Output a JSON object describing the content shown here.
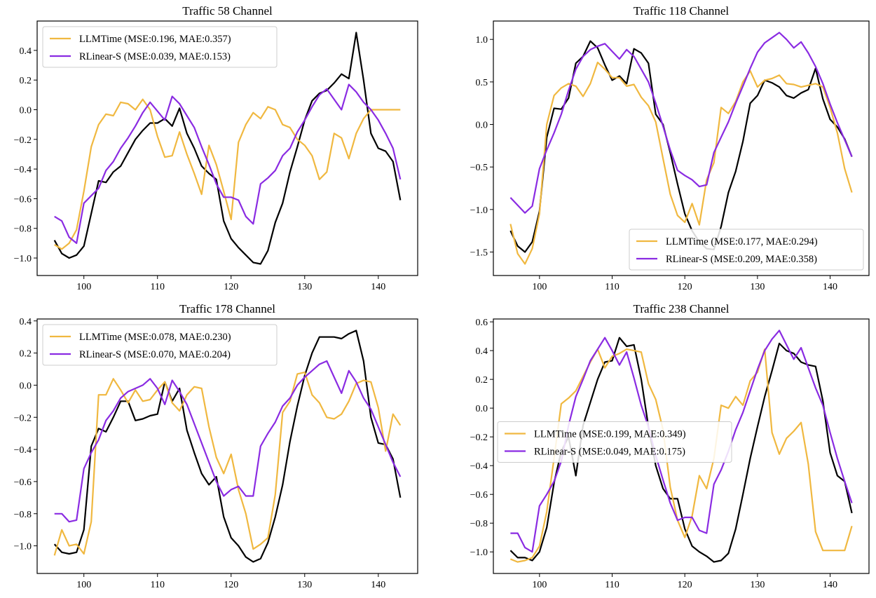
{
  "colors": {
    "truth": "#000000",
    "llmtime": "#F0B840",
    "rlinear": "#8A2BE2"
  },
  "chart_data": [
    {
      "type": "line",
      "title": "Traffic 58 Channel",
      "x_start": 96,
      "xlim": [
        93.65,
        145.35
      ],
      "ylim": [
        -1.118,
        0.598
      ],
      "xticks": [
        100,
        110,
        120,
        130,
        140
      ],
      "xticklabels": [
        "100",
        "110",
        "120",
        "130",
        "140"
      ],
      "yticks": [
        -1.0,
        -0.8,
        -0.6,
        -0.4,
        -0.2,
        0.0,
        0.2,
        0.4
      ],
      "yticklabels": [
        "−1.0",
        "−0.8",
        "−0.6",
        "−0.4",
        "−0.2",
        "0.0",
        "0.2",
        "0.4"
      ],
      "grid": false,
      "legend": "upper-left",
      "series": [
        {
          "color_key": "truth",
          "values": [
            -0.88,
            -0.97,
            -1.0,
            -0.98,
            -0.92,
            -0.7,
            -0.48,
            -0.49,
            -0.42,
            -0.38,
            -0.29,
            -0.2,
            -0.14,
            -0.09,
            -0.09,
            -0.06,
            -0.11,
            0.01,
            -0.16,
            -0.26,
            -0.38,
            -0.43,
            -0.47,
            -0.75,
            -0.87,
            -0.93,
            -0.98,
            -1.03,
            -1.04,
            -0.95,
            -0.76,
            -0.63,
            -0.42,
            -0.25,
            -0.07,
            0.06,
            0.11,
            0.13,
            0.18,
            0.24,
            0.21,
            0.52,
            0.2,
            -0.16,
            -0.26,
            -0.28,
            -0.35,
            -0.61
          ]
        },
        {
          "name": "LLMTime (MSE:0.196, MAE:0.357)",
          "color_key": "llmtime",
          "values": [
            -0.91,
            -0.94,
            -0.9,
            -0.81,
            -0.55,
            -0.25,
            -0.1,
            -0.03,
            -0.04,
            0.05,
            0.04,
            0.0,
            0.07,
            0.0,
            -0.18,
            -0.32,
            -0.31,
            -0.15,
            -0.3,
            -0.43,
            -0.57,
            -0.24,
            -0.37,
            -0.55,
            -0.74,
            -0.22,
            -0.1,
            -0.02,
            -0.06,
            0.02,
            0.0,
            -0.1,
            -0.12,
            -0.2,
            -0.24,
            -0.31,
            -0.47,
            -0.42,
            -0.16,
            -0.19,
            -0.33,
            -0.16,
            -0.06,
            0.0,
            0.0,
            0.0,
            0.0,
            0.0
          ]
        },
        {
          "name": "RLinear-S (MSE:0.039, MAE:0.153)",
          "color_key": "rlinear",
          "values": [
            -0.72,
            -0.75,
            -0.86,
            -0.9,
            -0.63,
            -0.58,
            -0.53,
            -0.41,
            -0.35,
            -0.26,
            -0.19,
            -0.11,
            -0.02,
            0.05,
            -0.01,
            -0.07,
            0.09,
            0.04,
            -0.04,
            -0.12,
            -0.25,
            -0.37,
            -0.5,
            -0.59,
            -0.59,
            -0.61,
            -0.72,
            -0.77,
            -0.5,
            -0.46,
            -0.41,
            -0.31,
            -0.26,
            -0.15,
            -0.07,
            0.02,
            0.1,
            0.14,
            0.07,
            0.0,
            0.17,
            0.12,
            0.05,
            0.0,
            -0.07,
            -0.16,
            -0.26,
            -0.47
          ]
        }
      ]
    },
    {
      "type": "line",
      "title": "Traffic 118 Channel",
      "x_start": 96,
      "xlim": [
        93.65,
        145.35
      ],
      "ylim": [
        -1.776,
        1.216
      ],
      "xticks": [
        100,
        110,
        120,
        130,
        140
      ],
      "xticklabels": [
        "100",
        "110",
        "120",
        "130",
        "140"
      ],
      "yticks": [
        -1.5,
        -1.0,
        -0.5,
        0.0,
        0.5,
        1.0
      ],
      "yticklabels": [
        "−1.5",
        "−1.0",
        "−0.5",
        "0.0",
        "0.5",
        "1.0"
      ],
      "grid": false,
      "legend": "lower-right",
      "series": [
        {
          "color_key": "truth",
          "values": [
            -1.25,
            -1.43,
            -1.5,
            -1.38,
            -1.02,
            -0.15,
            0.19,
            0.18,
            0.31,
            0.72,
            0.8,
            0.98,
            0.9,
            0.7,
            0.52,
            0.57,
            0.48,
            0.89,
            0.84,
            0.72,
            0.12,
            0.0,
            -0.33,
            -0.7,
            -1.05,
            -1.25,
            -1.38,
            -1.46,
            -1.47,
            -1.2,
            -0.8,
            -0.55,
            -0.2,
            0.25,
            0.34,
            0.52,
            0.49,
            0.44,
            0.34,
            0.31,
            0.37,
            0.41,
            0.66,
            0.3,
            0.06,
            -0.03,
            -0.17,
            -0.38
          ]
        },
        {
          "name": "LLMTime (MSE:0.177, MAE:0.294)",
          "color_key": "llmtime",
          "values": [
            -1.17,
            -1.52,
            -1.64,
            -1.46,
            -1.05,
            0.0,
            0.34,
            0.43,
            0.48,
            0.45,
            0.33,
            0.48,
            0.73,
            0.65,
            0.55,
            0.55,
            0.45,
            0.47,
            0.32,
            0.22,
            0.03,
            -0.4,
            -0.82,
            -1.07,
            -1.15,
            -0.93,
            -1.18,
            -0.65,
            -0.45,
            0.2,
            0.13,
            0.27,
            0.5,
            0.63,
            0.44,
            0.52,
            0.54,
            0.58,
            0.48,
            0.47,
            0.44,
            0.46,
            0.48,
            0.44,
            0.2,
            -0.1,
            -0.52,
            -0.8
          ]
        },
        {
          "name": "RLinear-S (MSE:0.209, MAE:0.358)",
          "color_key": "rlinear",
          "values": [
            -0.86,
            -0.95,
            -1.04,
            -0.96,
            -0.52,
            -0.3,
            -0.1,
            0.12,
            0.4,
            0.65,
            0.8,
            0.88,
            0.92,
            0.95,
            0.86,
            0.77,
            0.88,
            0.8,
            0.65,
            0.5,
            0.25,
            -0.02,
            -0.3,
            -0.54,
            -0.6,
            -0.65,
            -0.73,
            -0.71,
            -0.33,
            -0.15,
            0.03,
            0.25,
            0.45,
            0.66,
            0.85,
            0.96,
            1.02,
            1.08,
            1.0,
            0.9,
            0.97,
            0.84,
            0.68,
            0.48,
            0.24,
            0.02,
            -0.18,
            -0.38
          ]
        }
      ]
    },
    {
      "type": "line",
      "title": "Traffic 178 Channel",
      "x_start": 96,
      "xlim": [
        93.65,
        145.35
      ],
      "ylim": [
        -1.172,
        0.412
      ],
      "xticks": [
        100,
        110,
        120,
        130,
        140
      ],
      "xticklabels": [
        "100",
        "110",
        "120",
        "130",
        "140"
      ],
      "yticks": [
        -1.0,
        -0.8,
        -0.6,
        -0.4,
        -0.2,
        0.0,
        0.2,
        0.4
      ],
      "yticklabels": [
        "−1.0",
        "−0.8",
        "−0.6",
        "−0.4",
        "−0.2",
        "0.0",
        "0.2",
        "0.4"
      ],
      "grid": false,
      "legend": "upper-left",
      "series": [
        {
          "color_key": "truth",
          "values": [
            -0.99,
            -1.04,
            -1.05,
            -1.04,
            -0.9,
            -0.38,
            -0.27,
            -0.29,
            -0.2,
            -0.1,
            -0.1,
            -0.22,
            -0.21,
            -0.19,
            -0.18,
            0.02,
            -0.1,
            -0.02,
            -0.28,
            -0.42,
            -0.55,
            -0.62,
            -0.57,
            -0.82,
            -0.95,
            -1.0,
            -1.07,
            -1.1,
            -1.08,
            -0.98,
            -0.82,
            -0.62,
            -0.35,
            -0.13,
            0.06,
            0.2,
            0.3,
            0.3,
            0.3,
            0.29,
            0.32,
            0.34,
            0.15,
            -0.2,
            -0.36,
            -0.37,
            -0.46,
            -0.7
          ]
        },
        {
          "name": "LLMTime (MSE:0.078, MAE:0.230)",
          "color_key": "llmtime",
          "values": [
            -1.06,
            -0.9,
            -1.0,
            -0.99,
            -1.05,
            -0.85,
            -0.06,
            -0.06,
            0.04,
            -0.03,
            -0.11,
            -0.03,
            -0.1,
            -0.09,
            -0.03,
            0.02,
            -0.11,
            -0.16,
            -0.06,
            -0.01,
            -0.02,
            -0.26,
            -0.45,
            -0.55,
            -0.43,
            -0.65,
            -0.8,
            -1.02,
            -0.99,
            -0.95,
            -0.68,
            -0.17,
            -0.1,
            0.07,
            0.08,
            -0.06,
            -0.11,
            -0.2,
            -0.21,
            -0.18,
            -0.1,
            0.01,
            0.03,
            0.02,
            -0.14,
            -0.41,
            -0.18,
            -0.25
          ]
        },
        {
          "name": "RLinear-S (MSE:0.070, MAE:0.204)",
          "color_key": "rlinear",
          "values": [
            -0.8,
            -0.8,
            -0.85,
            -0.84,
            -0.52,
            -0.42,
            -0.34,
            -0.22,
            -0.16,
            -0.08,
            -0.04,
            -0.02,
            0.0,
            0.04,
            -0.02,
            -0.12,
            0.03,
            -0.04,
            -0.12,
            -0.24,
            -0.36,
            -0.48,
            -0.6,
            -0.69,
            -0.65,
            -0.63,
            -0.69,
            -0.69,
            -0.38,
            -0.3,
            -0.23,
            -0.13,
            -0.08,
            0.0,
            0.05,
            0.09,
            0.13,
            0.15,
            0.05,
            -0.05,
            0.09,
            0.02,
            -0.08,
            -0.15,
            -0.26,
            -0.37,
            -0.48,
            -0.57
          ]
        }
      ]
    },
    {
      "type": "line",
      "title": "Traffic 238 Channel",
      "x_start": 96,
      "xlim": [
        93.65,
        145.35
      ],
      "ylim": [
        -1.15,
        0.62
      ],
      "xticks": [
        100,
        110,
        120,
        130,
        140
      ],
      "xticklabels": [
        "100",
        "110",
        "120",
        "130",
        "140"
      ],
      "yticks": [
        -1.0,
        -0.8,
        -0.6,
        -0.4,
        -0.2,
        0.0,
        0.2,
        0.4,
        0.6
      ],
      "yticklabels": [
        "−1.0",
        "−0.8",
        "−0.6",
        "−0.4",
        "−0.2",
        "0.0",
        "0.2",
        "0.4",
        "0.6"
      ],
      "grid": false,
      "legend": "center-left",
      "series": [
        {
          "color_key": "truth",
          "values": [
            -0.99,
            -1.04,
            -1.04,
            -1.06,
            -1.0,
            -0.83,
            -0.52,
            -0.3,
            -0.2,
            -0.47,
            -0.12,
            0.04,
            0.2,
            0.32,
            0.33,
            0.49,
            0.43,
            0.44,
            0.2,
            -0.13,
            -0.4,
            -0.56,
            -0.63,
            -0.63,
            -0.84,
            -0.96,
            -1.0,
            -1.03,
            -1.07,
            -1.06,
            -1.01,
            -0.84,
            -0.6,
            -0.35,
            -0.13,
            0.08,
            0.26,
            0.45,
            0.4,
            0.38,
            0.32,
            0.3,
            0.29,
            0.05,
            -0.31,
            -0.47,
            -0.51,
            -0.73
          ]
        },
        {
          "name": "LLMTime (MSE:0.199, MAE:0.349)",
          "color_key": "llmtime",
          "values": [
            -1.05,
            -1.07,
            -1.06,
            -1.04,
            -0.96,
            -0.72,
            -0.35,
            0.03,
            0.07,
            0.12,
            0.22,
            0.32,
            0.41,
            0.28,
            0.36,
            0.38,
            0.41,
            0.4,
            0.39,
            0.17,
            0.06,
            -0.15,
            -0.55,
            -0.78,
            -0.9,
            -0.75,
            -0.47,
            -0.56,
            -0.35,
            0.02,
            0.0,
            0.08,
            0.02,
            0.19,
            0.25,
            0.41,
            -0.17,
            -0.32,
            -0.21,
            -0.16,
            -0.1,
            -0.39,
            -0.86,
            -0.99,
            -0.99,
            -0.99,
            -0.99,
            -0.82
          ]
        },
        {
          "name": "RLinear-S (MSE:0.049, MAE:0.175)",
          "color_key": "rlinear",
          "values": [
            -0.87,
            -0.87,
            -0.97,
            -1.0,
            -0.68,
            -0.6,
            -0.51,
            -0.37,
            -0.12,
            0.08,
            0.2,
            0.33,
            0.41,
            0.49,
            0.4,
            0.3,
            0.39,
            0.21,
            0.02,
            -0.13,
            -0.33,
            -0.5,
            -0.66,
            -0.78,
            -0.76,
            -0.76,
            -0.85,
            -0.87,
            -0.53,
            -0.43,
            -0.3,
            -0.15,
            -0.03,
            0.12,
            0.27,
            0.4,
            0.48,
            0.54,
            0.44,
            0.34,
            0.42,
            0.28,
            0.14,
            0.02,
            -0.17,
            -0.35,
            -0.51,
            -0.66
          ]
        }
      ]
    }
  ]
}
